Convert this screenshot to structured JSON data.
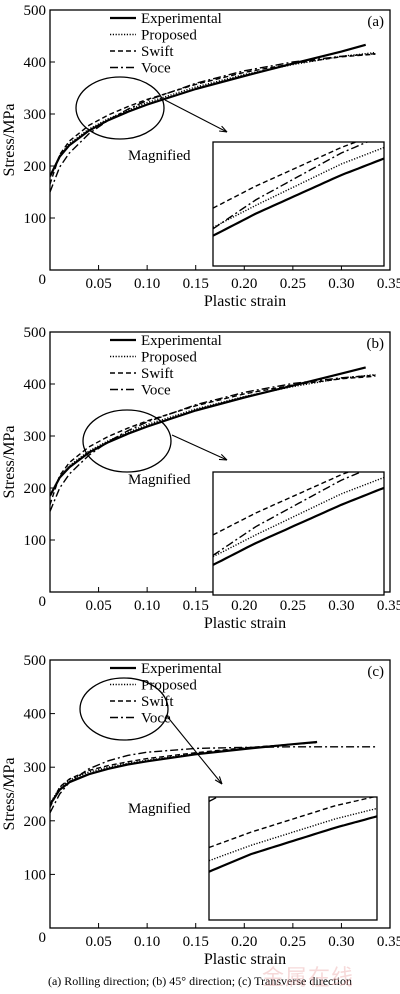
{
  "caption": "(a) Rolling direction; (b) 45° direction; (c) Transverse direction",
  "watermark": "金属在线",
  "chart_data": [
    {
      "type": "line",
      "panel_label": "(a)",
      "xlabel": "Plastic strain",
      "ylabel": "Stress/MPa",
      "xlim": [
        0,
        0.35
      ],
      "ylim": [
        0,
        500
      ],
      "xticks": [
        "0",
        "0.05",
        "0.10",
        "0.15",
        "0.20",
        "0.25",
        "0.30",
        "0.35"
      ],
      "yticks": [
        "0",
        "100",
        "200",
        "300",
        "400",
        "500"
      ],
      "legend": "top-left",
      "annotation": "Magnified",
      "series": [
        {
          "name": "Experimental",
          "style": "solid",
          "x": [
            0,
            0.01,
            0.02,
            0.04,
            0.06,
            0.08,
            0.1,
            0.15,
            0.2,
            0.25,
            0.3,
            0.325
          ],
          "y": [
            180,
            218,
            240,
            268,
            288,
            304,
            318,
            348,
            373,
            397,
            420,
            433
          ]
        },
        {
          "name": "Proposed",
          "style": "dotted",
          "x": [
            0,
            0.01,
            0.02,
            0.04,
            0.06,
            0.08,
            0.1,
            0.15,
            0.2,
            0.25,
            0.3,
            0.335
          ],
          "y": [
            180,
            220,
            243,
            271,
            291,
            307,
            322,
            352,
            376,
            395,
            411,
            418
          ]
        },
        {
          "name": "Swift",
          "style": "dashed",
          "x": [
            0,
            0.01,
            0.02,
            0.04,
            0.06,
            0.08,
            0.1,
            0.15,
            0.2,
            0.25,
            0.3,
            0.335
          ],
          "y": [
            165,
            222,
            248,
            278,
            298,
            314,
            328,
            357,
            380,
            397,
            410,
            415
          ]
        },
        {
          "name": "Voce",
          "style": "dashdot",
          "x": [
            0,
            0.01,
            0.02,
            0.04,
            0.06,
            0.08,
            0.1,
            0.15,
            0.2,
            0.25,
            0.3,
            0.335
          ],
          "y": [
            150,
            198,
            225,
            262,
            288,
            309,
            326,
            359,
            383,
            400,
            411,
            416
          ]
        }
      ]
    },
    {
      "type": "line",
      "panel_label": "(b)",
      "xlabel": "Plastic strain",
      "ylabel": "Stress/MPa",
      "xlim": [
        0,
        0.35
      ],
      "ylim": [
        0,
        500
      ],
      "xticks": [
        "0",
        "0.05",
        "0.10",
        "0.15",
        "0.20",
        "0.25",
        "0.30",
        "0.35"
      ],
      "yticks": [
        "0",
        "100",
        "200",
        "300",
        "400",
        "500"
      ],
      "legend": "top-left",
      "annotation": "Magnified",
      "series": [
        {
          "name": "Experimental",
          "style": "solid",
          "x": [
            0,
            0.01,
            0.02,
            0.04,
            0.06,
            0.08,
            0.1,
            0.15,
            0.2,
            0.25,
            0.3,
            0.325
          ],
          "y": [
            185,
            220,
            240,
            268,
            288,
            304,
            318,
            349,
            374,
            397,
            420,
            432
          ]
        },
        {
          "name": "Proposed",
          "style": "dotted",
          "x": [
            0,
            0.01,
            0.02,
            0.04,
            0.06,
            0.08,
            0.1,
            0.15,
            0.2,
            0.25,
            0.3,
            0.335
          ],
          "y": [
            185,
            222,
            243,
            271,
            291,
            307,
            322,
            352,
            376,
            395,
            411,
            418
          ]
        },
        {
          "name": "Swift",
          "style": "dashed",
          "x": [
            0,
            0.01,
            0.02,
            0.04,
            0.06,
            0.08,
            0.1,
            0.15,
            0.2,
            0.25,
            0.3,
            0.335
          ],
          "y": [
            168,
            224,
            249,
            279,
            299,
            315,
            329,
            358,
            381,
            398,
            410,
            415
          ]
        },
        {
          "name": "Voce",
          "style": "dashdot",
          "x": [
            0,
            0.01,
            0.02,
            0.04,
            0.06,
            0.08,
            0.1,
            0.15,
            0.2,
            0.25,
            0.3,
            0.335
          ],
          "y": [
            155,
            200,
            227,
            263,
            289,
            310,
            327,
            360,
            384,
            401,
            412,
            417
          ]
        }
      ]
    },
    {
      "type": "line",
      "panel_label": "(c)",
      "xlabel": "Plastic strain",
      "ylabel": "Stress/MPa",
      "xlim": [
        0,
        0.35
      ],
      "ylim": [
        0,
        500
      ],
      "xticks": [
        "0",
        "0.05",
        "0.10",
        "0.15",
        "0.20",
        "0.25",
        "0.30",
        "0.35"
      ],
      "yticks": [
        "0",
        "100",
        "200",
        "300",
        "400",
        "500"
      ],
      "legend": "top-left",
      "annotation": "Magnified",
      "series": [
        {
          "name": "Experimental",
          "style": "solid",
          "x": [
            0,
            0.01,
            0.02,
            0.04,
            0.06,
            0.08,
            0.1,
            0.15,
            0.2,
            0.25,
            0.275
          ],
          "y": [
            230,
            258,
            272,
            287,
            297,
            305,
            311,
            324,
            334,
            343,
            347
          ]
        },
        {
          "name": "Proposed",
          "style": "dotted",
          "x": [
            0,
            0.01,
            0.02,
            0.04,
            0.06,
            0.08,
            0.1,
            0.15,
            0.2,
            0.25,
            0.275
          ],
          "y": [
            232,
            262,
            276,
            291,
            300,
            307,
            313,
            325,
            335,
            343,
            346
          ]
        },
        {
          "name": "Swift",
          "style": "dashed",
          "x": [
            0,
            0.01,
            0.02,
            0.04,
            0.06,
            0.08,
            0.1,
            0.15,
            0.2,
            0.25,
            0.275
          ],
          "y": [
            225,
            263,
            278,
            294,
            303,
            310,
            316,
            327,
            336,
            343,
            346
          ]
        },
        {
          "name": "Voce",
          "style": "dashdot",
          "x": [
            0,
            0.01,
            0.02,
            0.04,
            0.06,
            0.08,
            0.1,
            0.15,
            0.2,
            0.25,
            0.275,
            0.335
          ],
          "y": [
            215,
            250,
            272,
            297,
            312,
            322,
            328,
            335,
            337,
            338,
            338,
            338
          ]
        }
      ]
    }
  ]
}
